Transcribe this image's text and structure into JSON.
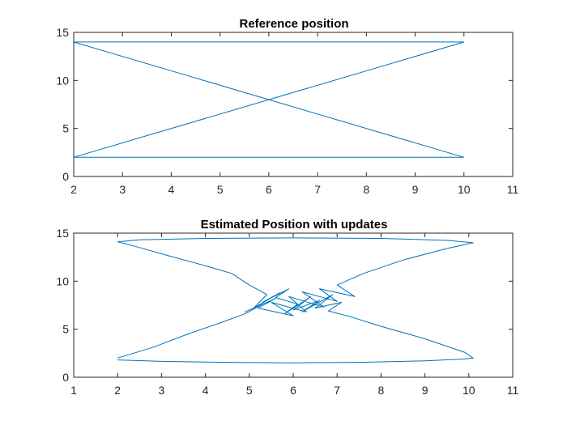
{
  "chart_data": [
    {
      "type": "line",
      "title": "Reference position",
      "xlabel": "",
      "ylabel": "",
      "xlim": [
        2,
        11
      ],
      "ylim": [
        0,
        15
      ],
      "xticks": [
        "2",
        "3",
        "4",
        "5",
        "6",
        "7",
        "8",
        "9",
        "10",
        "11"
      ],
      "yticks": [
        "0",
        "5",
        "10",
        "15"
      ],
      "grid": false,
      "color": "#0072bd",
      "series": [
        {
          "x": [
            2,
            10,
            2,
            10,
            2
          ],
          "y": [
            2,
            2,
            14,
            14,
            2
          ]
        }
      ]
    },
    {
      "type": "line",
      "title": "Estimated Position with updates",
      "xlabel": "",
      "ylabel": "",
      "xlim": [
        1,
        11
      ],
      "ylim": [
        0,
        15
      ],
      "xticks": [
        "1",
        "2",
        "3",
        "4",
        "5",
        "6",
        "7",
        "8",
        "9",
        "10",
        "11"
      ],
      "yticks": [
        "0",
        "5",
        "10",
        "15"
      ],
      "grid": false,
      "color": "#0072bd",
      "series": [
        {
          "x": [
            2.0,
            3.0,
            4.5,
            6.0,
            7.5,
            9.0,
            9.9,
            10.1,
            9.9,
            9.0,
            8.0,
            7.3,
            6.8,
            7.1,
            6.5,
            6.9,
            6.2,
            6.6,
            6.0,
            6.4,
            5.8,
            6.1,
            5.6,
            5.9,
            5.3,
            5.7,
            5.1,
            5.4,
            5.0,
            4.6,
            4.0,
            3.2,
            2.5,
            2.0,
            2.5,
            4.0,
            6.0,
            8.0,
            9.5,
            10.1,
            9.5,
            8.5,
            7.6,
            7.0,
            7.4,
            6.6,
            7.0,
            6.2,
            6.7,
            5.9,
            6.3,
            5.5,
            6.0,
            5.2,
            5.6,
            4.9,
            5.3,
            4.9,
            4.3,
            3.6,
            2.8,
            2.0
          ],
          "y": [
            1.8,
            1.65,
            1.55,
            1.5,
            1.55,
            1.7,
            1.9,
            2.0,
            2.6,
            4.0,
            5.3,
            6.3,
            6.9,
            7.8,
            7.2,
            8.6,
            6.8,
            8.0,
            7.0,
            8.4,
            6.6,
            7.6,
            8.3,
            9.2,
            7.8,
            8.8,
            7.2,
            8.6,
            9.6,
            10.8,
            11.6,
            12.6,
            13.5,
            14.1,
            14.3,
            14.45,
            14.5,
            14.45,
            14.25,
            14.0,
            13.4,
            12.2,
            10.8,
            9.6,
            8.4,
            9.2,
            7.9,
            8.9,
            7.3,
            8.4,
            6.8,
            7.8,
            6.4,
            7.2,
            8.2,
            6.8,
            7.6,
            6.6,
            5.6,
            4.5,
            3.1,
            2.0
          ]
        }
      ]
    }
  ]
}
